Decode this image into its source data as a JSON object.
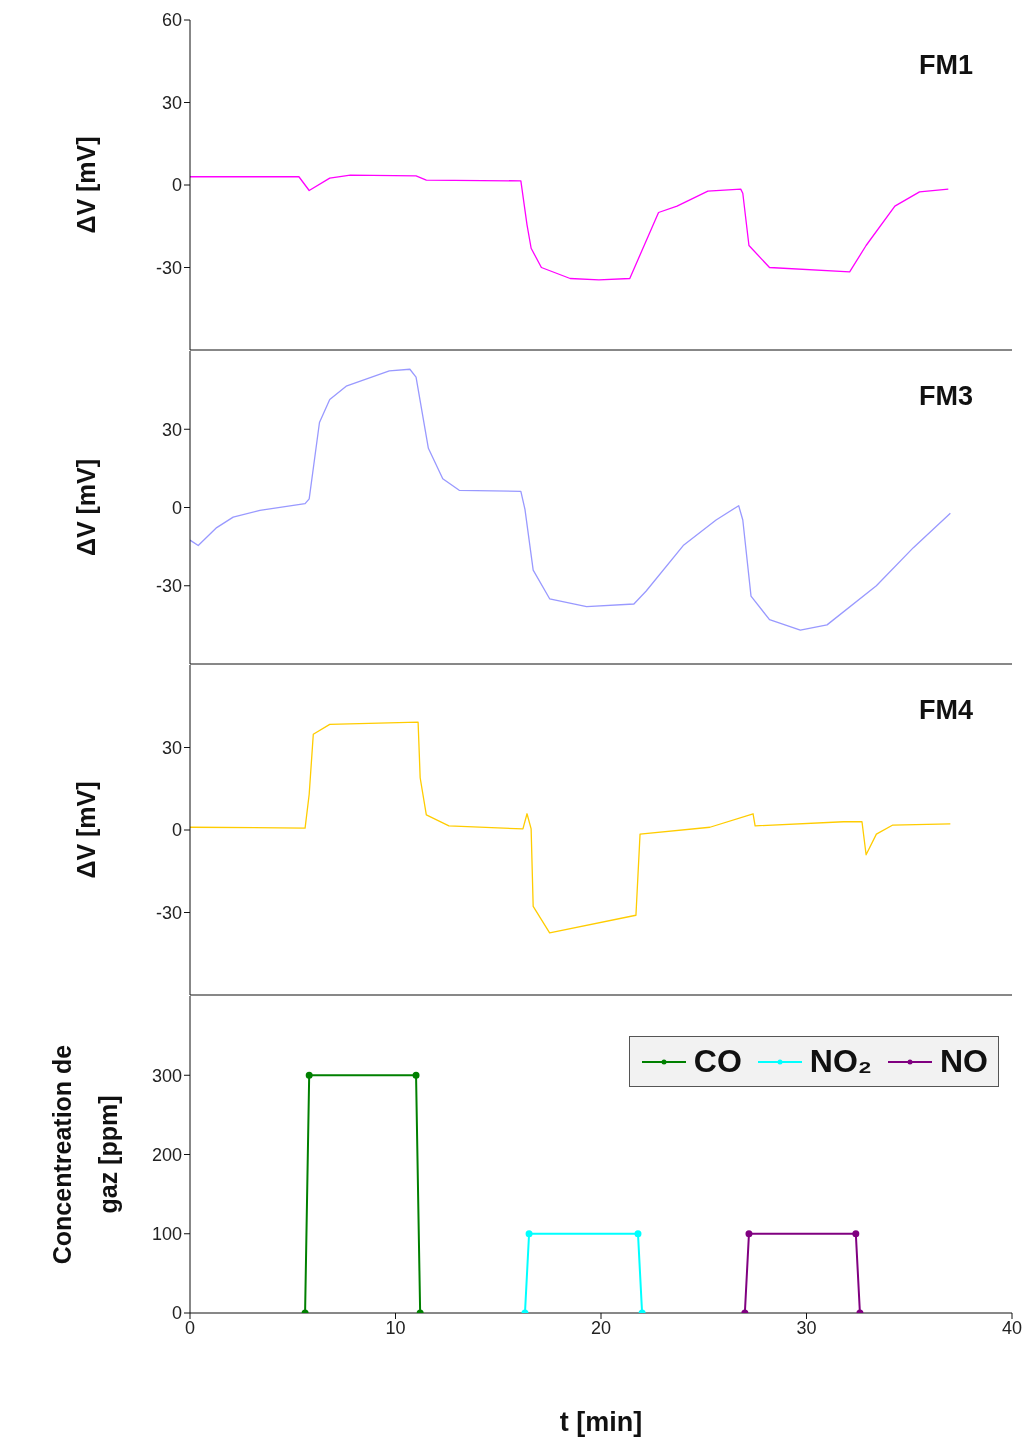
{
  "chart_data": [
    {
      "type": "line",
      "title": "FM1",
      "ylabel": "ΔV [mV]",
      "xlim": [
        0,
        40
      ],
      "ylim": [
        -60,
        60
      ],
      "yticks": [
        -30,
        0,
        30,
        60
      ],
      "tick_labels": "y",
      "marker": "none",
      "line_style": "solid",
      "series": [
        {
          "color": "#ff00ff",
          "x": [
            0,
            5.3,
            5.8,
            6.8,
            7.8,
            11,
            11.5,
            16.1,
            16.4,
            16.6,
            17.1,
            18.5,
            19.9,
            21.4,
            22.8,
            23.7,
            25.2,
            26.8,
            26.9,
            27.2,
            28.2,
            32.1,
            32.9,
            34.3,
            35.5,
            36.9
          ],
          "values": [
            3,
            3,
            -2,
            2.5,
            3.6,
            3.3,
            1.8,
            1.5,
            -14.5,
            -23,
            -30,
            -34,
            -34.5,
            -34,
            -10,
            -7.7,
            -2.2,
            -1.5,
            -3,
            -22,
            -30,
            -31.6,
            -22,
            -7.7,
            -2.5,
            -1.5
          ]
        }
      ]
    },
    {
      "type": "line",
      "title": "FM3",
      "ylabel": "ΔV [mV]",
      "xlim": [
        0,
        40
      ],
      "ylim": [
        -60,
        60
      ],
      "yticks": [
        -30,
        0,
        30
      ],
      "tick_labels": "y",
      "marker": "none",
      "line_style": "solid",
      "series": [
        {
          "color": "#9999ff",
          "x": [
            0,
            0.4,
            1.3,
            2.1,
            3.4,
            5.6,
            5.8,
            6.3,
            6.8,
            7.6,
            9.7,
            10.7,
            11,
            11.6,
            12.3,
            13.1,
            16.1,
            16.3,
            16.7,
            17.5,
            19.3,
            21.6,
            22.2,
            24,
            25.6,
            26.7,
            26.9,
            27.3,
            28.2,
            29.7,
            31,
            33.4,
            35.2,
            37
          ],
          "values": [
            -12.5,
            -14.6,
            -7.7,
            -3.7,
            -1.1,
            1.5,
            3.3,
            32.6,
            41.4,
            46.5,
            52.4,
            53,
            50,
            22.7,
            11,
            6.6,
            6.2,
            -0.7,
            -24,
            -35,
            -38,
            -37,
            -32,
            -14.6,
            -4.8,
            0.7,
            -4.8,
            -34,
            -43,
            -47,
            -45,
            -30,
            -15.4,
            -2.2
          ]
        }
      ]
    },
    {
      "type": "line",
      "title": "FM4",
      "ylabel": "ΔV [mV]",
      "xlim": [
        0,
        40
      ],
      "ylim": [
        -60,
        60
      ],
      "yticks": [
        -30,
        0,
        30
      ],
      "tick_labels": "y",
      "marker": "none",
      "line_style": "solid",
      "series": [
        {
          "color": "#ffcc00",
          "x": [
            0,
            5.6,
            5.8,
            6,
            6.8,
            11.1,
            11.2,
            11.5,
            12.6,
            16.2,
            16.4,
            16.6,
            16.7,
            17.5,
            21.7,
            21.9,
            25.3,
            27.4,
            27.5,
            31.8,
            32.7,
            32.9,
            33.4,
            34.2,
            37
          ],
          "values": [
            1,
            0.7,
            13,
            34.8,
            38.4,
            39.2,
            19,
            5.5,
            1.5,
            0.4,
            5.9,
            0.4,
            -27.8,
            -37.4,
            -31,
            -1.5,
            1,
            5.9,
            1.5,
            3,
            3,
            -9,
            -1.5,
            1.8,
            2.2
          ]
        }
      ]
    },
    {
      "type": "line",
      "ylabel": "Concentreation de gaz [ppm]",
      "xlabel": "t [min]",
      "xlim": [
        0,
        40
      ],
      "xticks": [
        0,
        10,
        20,
        30,
        40
      ],
      "ylim": [
        0,
        400
      ],
      "yticks": [
        0,
        100,
        200,
        300
      ],
      "marker": "circle",
      "line_style": "solid",
      "legend": "top right",
      "series": [
        {
          "name": "CO",
          "color": "#008000",
          "x": [
            5.6,
            5.8,
            11.0,
            11.2
          ],
          "values": [
            0,
            300,
            300,
            0
          ]
        },
        {
          "name": "NO₂",
          "color": "#00ffff",
          "x": [
            16.3,
            16.5,
            21.8,
            22.0
          ],
          "values": [
            0,
            100,
            100,
            0
          ]
        },
        {
          "name": "NO",
          "color": "#800080",
          "x": [
            27.0,
            27.2,
            32.4,
            32.6
          ],
          "values": [
            0,
            100,
            100,
            0
          ]
        }
      ]
    }
  ]
}
